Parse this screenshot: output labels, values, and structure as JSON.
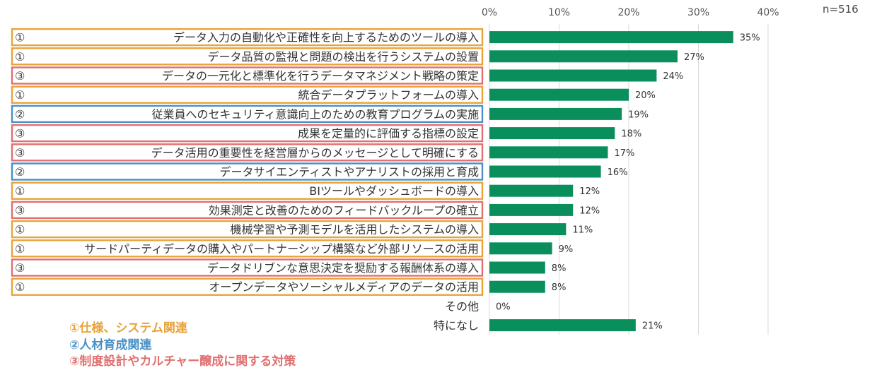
{
  "note": "n=516",
  "legend": [
    {
      "label": "①仕様、システム関連",
      "color": "#E8A33B"
    },
    {
      "label": "②人材育成関連",
      "color": "#4A90C4"
    },
    {
      "label": "③制度設計やカルチャー醸成に関する対策",
      "color": "#E07070"
    }
  ],
  "chart_data": {
    "type": "bar",
    "orientation": "horizontal",
    "xlim": [
      0,
      40
    ],
    "x_ticks": [
      "0%",
      "10%",
      "20%",
      "30%",
      "40%"
    ],
    "grid": true,
    "bar_color": "#0A8F5C",
    "categories": [
      "データ入力の自動化や正確性を向上するためのツールの導入",
      "データ品質の監視と問題の検出を行うシステムの設置",
      "データの一元化と標準化を行うデータマネジメント戦略の策定",
      "統合データプラットフォームの導入",
      "従業員へのセキュリティ意識向上のための教育プログラムの実施",
      "成果を定量的に評価する指標の設定",
      "データ活用の重要性を経営層からのメッセージとして明確にする",
      "データサイエンティストやアナリストの採用と育成",
      "BIツールやダッシュボードの導入",
      "効果測定と改善のためのフィードバックループの確立",
      "機械学習や予測モデルを活用したシステムの導入",
      "サードパーティデータの購入やパートナーシップ構築など外部リソースの活用",
      "データドリブンな意思決定を奨励する報酬体系の導入",
      "オープンデータやソーシャルメディアのデータの活用",
      "その他",
      "特になし"
    ],
    "values": [
      35,
      27,
      24,
      20,
      19,
      18,
      17,
      16,
      12,
      12,
      11,
      9,
      8,
      8,
      0,
      21
    ],
    "value_labels": [
      "35%",
      "27%",
      "24%",
      "20%",
      "19%",
      "18%",
      "17%",
      "16%",
      "12%",
      "12%",
      "11%",
      "9%",
      "8%",
      "8%",
      "0%",
      "21%"
    ],
    "group_marks": [
      "①",
      "①",
      "③",
      "①",
      "②",
      "③",
      "③",
      "②",
      "①",
      "③",
      "①",
      "①",
      "③",
      "①",
      "",
      ""
    ],
    "group_colors": {
      "①": "#E8A33B",
      "②": "#4A90C4",
      "③": "#E07070"
    }
  }
}
